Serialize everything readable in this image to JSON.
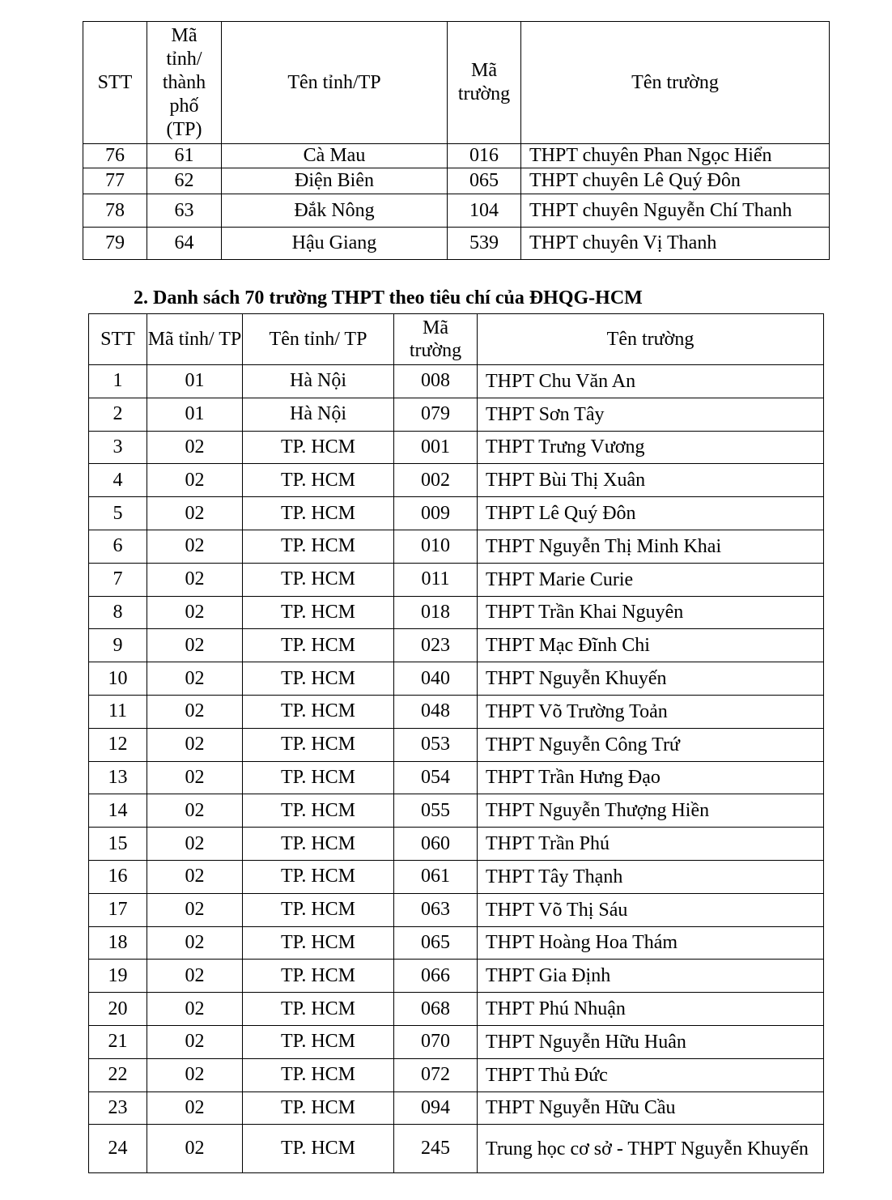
{
  "table1": {
    "headers": [
      "STT",
      "Mã tỉnh/ thành phố (TP)",
      "Tên tỉnh/TP",
      "Mã trường",
      "Tên trường"
    ],
    "rows": [
      [
        "76",
        "61",
        "Cà Mau",
        "016",
        "THPT chuyên Phan Ngọc Hiển"
      ],
      [
        "77",
        "62",
        "Điện Biên",
        "065",
        "THPT chuyên Lê Quý Đôn"
      ],
      [
        "78",
        "63",
        "Đắk Nông",
        "104",
        "THPT chuyên Nguyễn Chí Thanh"
      ],
      [
        "79",
        "64",
        "Hậu Giang",
        "539",
        "THPT chuyên Vị Thanh"
      ]
    ]
  },
  "section2": {
    "heading": "2.  Danh sách 70 trường THPT theo tiêu chí của ĐHQG-HCM"
  },
  "table2": {
    "headers": [
      "STT",
      "Mã tỉnh/ TP",
      "Tên tỉnh/ TP",
      "Mã trường",
      "Tên trường"
    ],
    "rows": [
      [
        "1",
        "01",
        "Hà Nội",
        "008",
        "THPT Chu Văn An"
      ],
      [
        "2",
        "01",
        "Hà Nội",
        "079",
        "THPT Sơn Tây"
      ],
      [
        "3",
        "02",
        "TP. HCM",
        "001",
        "THPT Trưng Vương"
      ],
      [
        "4",
        "02",
        "TP. HCM",
        "002",
        "THPT Bùi Thị Xuân"
      ],
      [
        "5",
        "02",
        "TP. HCM",
        "009",
        "THPT Lê Quý Đôn"
      ],
      [
        "6",
        "02",
        "TP. HCM",
        "010",
        "THPT Nguyễn Thị Minh Khai"
      ],
      [
        "7",
        "02",
        "TP. HCM",
        "011",
        "THPT Marie Curie"
      ],
      [
        "8",
        "02",
        "TP. HCM",
        "018",
        "THPT Trần Khai Nguyên"
      ],
      [
        "9",
        "02",
        "TP. HCM",
        "023",
        "THPT Mạc Đĩnh Chi"
      ],
      [
        "10",
        "02",
        "TP. HCM",
        "040",
        "THPT Nguyễn Khuyến"
      ],
      [
        "11",
        "02",
        "TP. HCM",
        "048",
        "THPT Võ Trường Toản"
      ],
      [
        "12",
        "02",
        "TP. HCM",
        "053",
        "THPT Nguyễn Công Trứ"
      ],
      [
        "13",
        "02",
        "TP. HCM",
        "054",
        "THPT Trần Hưng Đạo"
      ],
      [
        "14",
        "02",
        "TP. HCM",
        "055",
        "THPT Nguyễn Thượng Hiền"
      ],
      [
        "15",
        "02",
        "TP. HCM",
        "060",
        "THPT Trần Phú"
      ],
      [
        "16",
        "02",
        "TP. HCM",
        "061",
        "THPT Tây Thạnh"
      ],
      [
        "17",
        "02",
        "TP. HCM",
        "063",
        "THPT Võ Thị Sáu"
      ],
      [
        "18",
        "02",
        "TP. HCM",
        "065",
        "THPT Hoàng Hoa Thám"
      ],
      [
        "19",
        "02",
        "TP. HCM",
        "066",
        "THPT Gia Định"
      ],
      [
        "20",
        "02",
        "TP. HCM",
        "068",
        "THPT Phú Nhuận"
      ],
      [
        "21",
        "02",
        "TP. HCM",
        "070",
        "THPT Nguyễn Hữu Huân"
      ],
      [
        "22",
        "02",
        "TP. HCM",
        "072",
        "THPT Thủ Đức"
      ],
      [
        "23",
        "02",
        "TP. HCM",
        "094",
        "THPT Nguyễn Hữu Cầu"
      ],
      [
        "24",
        "02",
        "TP. HCM",
        "245",
        "Trung học cơ sở - THPT Nguyễn Khuyến"
      ]
    ]
  }
}
